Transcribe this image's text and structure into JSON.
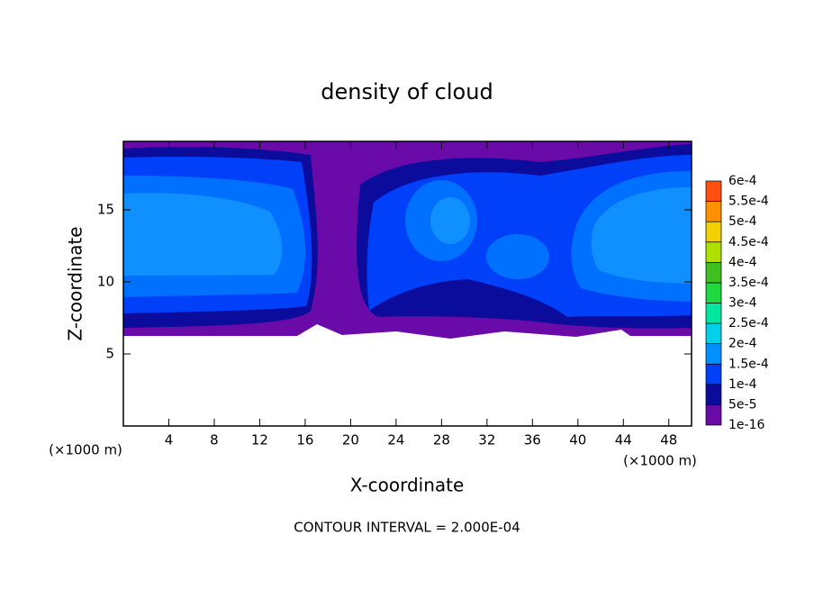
{
  "chart_data": {
    "type": "contour",
    "title": "density of cloud",
    "xlabel": "X-coordinate",
    "ylabel": "Z-coordinate",
    "x_unit": "(×1000 m)",
    "y_unit": "(×1000 m)",
    "annotation": "CONTOUR INTERVAL = 2.000E-04",
    "xlim": [
      0,
      50
    ],
    "ylim": [
      0,
      19.75
    ],
    "xticks": [
      4,
      8,
      12,
      16,
      20,
      24,
      28,
      32,
      36,
      40,
      44,
      48
    ],
    "yticks": [
      5,
      10,
      15
    ],
    "colorbar": {
      "levels": [
        {
          "value": 1e-16,
          "label": "1e-16"
        },
        {
          "value": 5e-05,
          "label": "5e-5"
        },
        {
          "value": 0.0001,
          "label": "1e-4"
        },
        {
          "value": 0.00015,
          "label": "1.5e-4"
        },
        {
          "value": 0.0002,
          "label": "2e-4"
        },
        {
          "value": 0.00025,
          "label": "2.5e-4"
        },
        {
          "value": 0.0003,
          "label": "3e-4"
        },
        {
          "value": 0.00035,
          "label": "3.5e-4"
        },
        {
          "value": 0.0004,
          "label": "4e-4"
        },
        {
          "value": 0.00045,
          "label": "4.5e-4"
        },
        {
          "value": 0.0005,
          "label": "5e-4"
        },
        {
          "value": 0.00055,
          "label": "5.5e-4"
        },
        {
          "value": 0.0006,
          "label": "6e-4"
        }
      ],
      "colors": [
        "#6a0aa8",
        "#0c0c9c",
        "#0040f8",
        "#0090ff",
        "#00d0e8",
        "#00e8a0",
        "#20d840",
        "#40c020",
        "#b0e000",
        "#f0d000",
        "#ff9000",
        "#ff5010",
        "#ff2020",
        "#ff8888"
      ]
    }
  }
}
